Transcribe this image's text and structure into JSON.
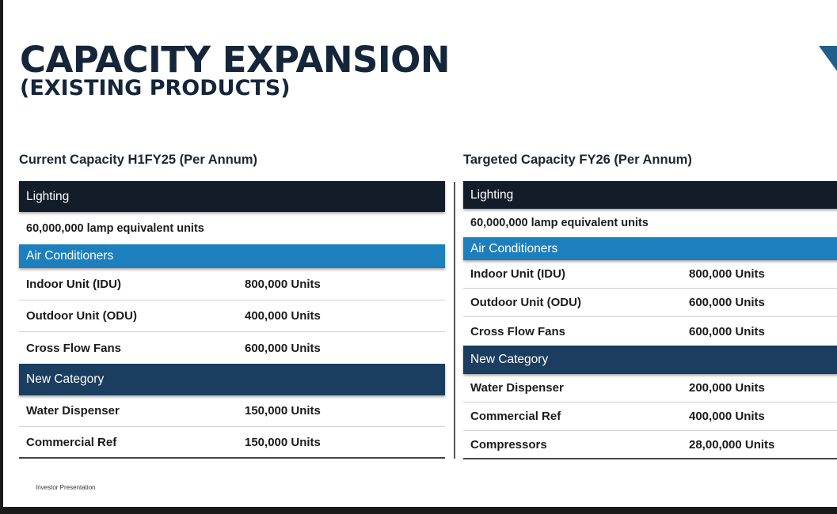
{
  "title_line1": "CAPACITY EXPANSION",
  "title_line2": "(EXISTING PRODUCTS)",
  "left": {
    "heading": "Current Capacity H1FY25 (Per Annum)",
    "lighting_header": "Lighting",
    "lighting_value": "60,000,000 lamp equivalent units",
    "ac_header": "Air Conditioners",
    "ac_rows": [
      {
        "label": "Indoor Unit (IDU)",
        "value": "800,000 Units"
      },
      {
        "label": "Outdoor Unit (ODU)",
        "value": "400,000 Units"
      },
      {
        "label": "Cross Flow Fans",
        "value": "600,000 Units"
      }
    ],
    "new_header": "New Category",
    "new_rows": [
      {
        "label": "Water Dispenser",
        "value": "150,000 Units"
      },
      {
        "label": "Commercial Ref",
        "value": "150,000 Units"
      }
    ]
  },
  "right": {
    "heading": "Targeted Capacity FY26 (Per Annum)",
    "lighting_header": "Lighting",
    "lighting_value": "60,000,000 lamp equivalent units",
    "ac_header": "Air Conditioners",
    "ac_rows": [
      {
        "label": "Indoor Unit (IDU)",
        "value": "800,000 Units"
      },
      {
        "label": "Outdoor Unit (ODU)",
        "value": "600,000 Units"
      },
      {
        "label": "Cross Flow Fans",
        "value": "600,000 Units"
      }
    ],
    "new_header": "New Category",
    "new_rows": [
      {
        "label": "Water Dispenser",
        "value": "200,000 Units"
      },
      {
        "label": "Commercial Ref",
        "value": "400,000 Units"
      },
      {
        "label": "Compressors",
        "value": "28,00,000 Units"
      }
    ]
  },
  "footer": "Investor Presentation",
  "colors": {
    "title": "#15263a",
    "header_dark": "#131d2a",
    "header_mid": "#1b3d60",
    "header_blue": "#1d7fbd"
  }
}
